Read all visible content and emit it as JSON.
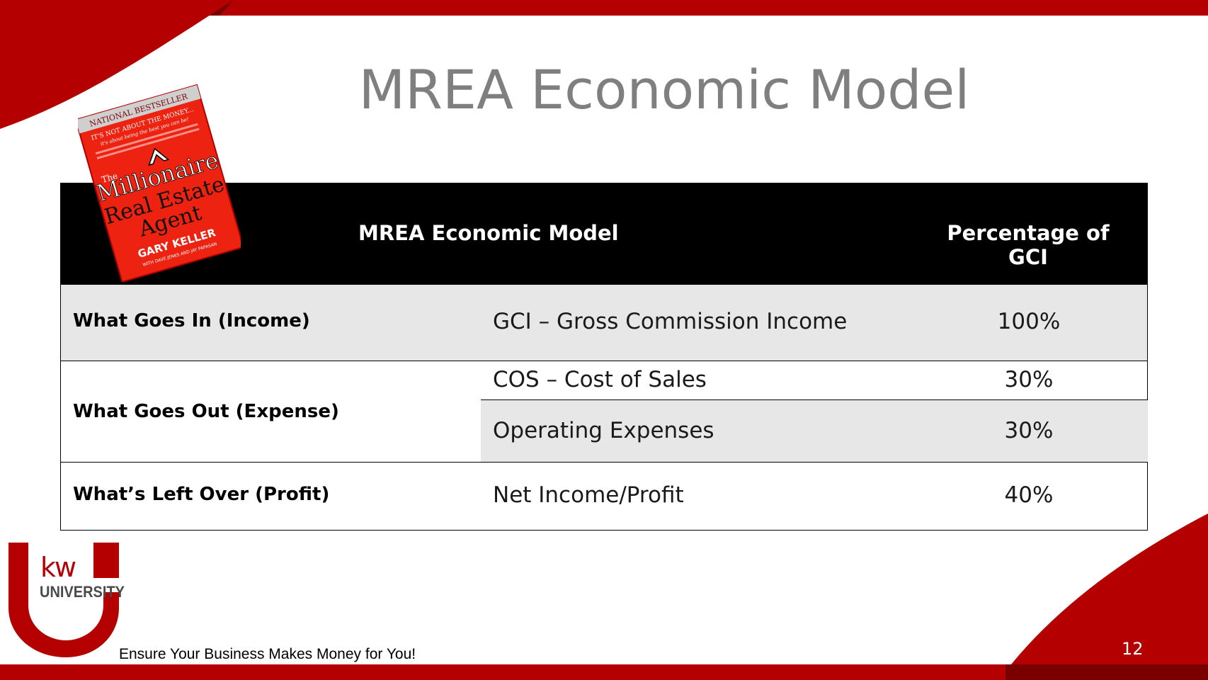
{
  "slide": {
    "title": "MREA Economic Model",
    "page_number": "12",
    "footer": "Ensure Your Business Makes Money for You!"
  },
  "table": {
    "headers": {
      "model": "MREA Economic Model",
      "percentage": "Percentage of GCI"
    },
    "rows": [
      {
        "label": "What Goes In (Income)",
        "item": "GCI – Gross Commission Income",
        "pct": "100%"
      },
      {
        "label": "What Goes Out (Expense)",
        "item": "COS – Cost of Sales",
        "pct": "30%"
      },
      {
        "label": "",
        "item": "Operating Expenses",
        "pct": "30%"
      },
      {
        "label": "What’s Left Over (Profit)",
        "item": "Net Income/Profit",
        "pct": "40%"
      }
    ]
  },
  "book": {
    "banner": "NATIONAL BESTSELLER",
    "tagline_1": "IT'S NOT ABOUT THE MONEY...",
    "tagline_2": "it's about being the best you can be!",
    "the": "The",
    "title_1": "Millionaire",
    "title_2": "Real Estate",
    "title_3": "Agent",
    "author": "GARY KELLER",
    "coauthors": "WITH DAVE JENKS AND JAY PAPASAN"
  },
  "logo": {
    "kw": "kw",
    "university": "UNIVERSITY"
  },
  "colors": {
    "brand_red": "#b40000",
    "dark_red": "#7a0000",
    "title_gray": "#7f7f7f",
    "header_black": "#000000",
    "row_shade": "#e7e7e7",
    "book_red": "#ee2211"
  }
}
